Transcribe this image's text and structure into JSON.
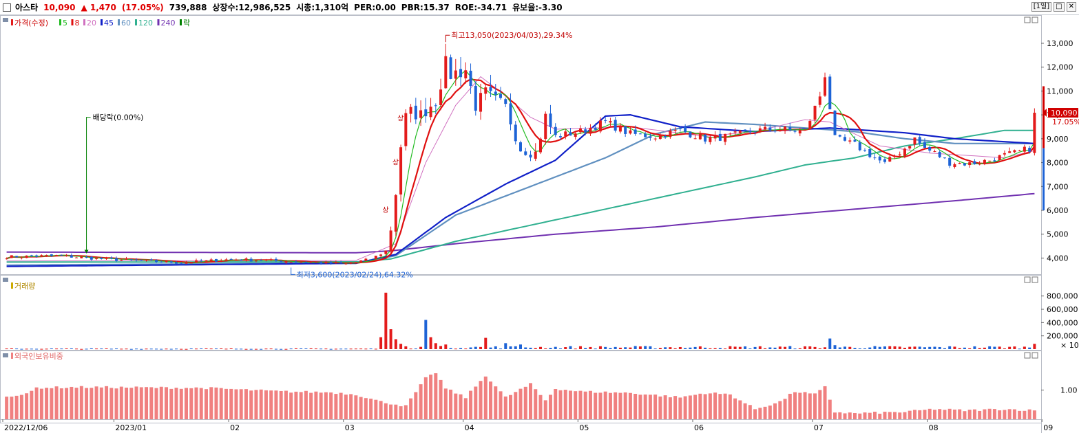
{
  "header": {
    "name": "아스타",
    "price": "10,090",
    "change": "▲ 1,470",
    "change_pct": "(17.05%)",
    "volume": "739,888",
    "listed": "상장수:12,986,525",
    "mcap": "시총:1,310억",
    "per": "PER:0.00",
    "pbr": "PBR:15.37",
    "roe": "ROE:-34.71",
    "reserve": "유보율:-3.30",
    "period": "[1일]"
  },
  "colors": {
    "up": "#e31b1b",
    "down": "#1d63d6",
    "ma5": "#22bb22",
    "ma8": "#e01010",
    "ma20": "#d070c0",
    "ma45": "#1020c8",
    "ma60": "#6090c0",
    "ma120": "#30b090",
    "ma240": "#7030b0",
    "foreign": "#f08080"
  },
  "chart_data": [
    {
      "type": "candlestick",
      "legend": [
        "가격(수정)",
        "5",
        "8",
        "20",
        "45",
        "60",
        "120",
        "240",
        "락"
      ],
      "y_ticks": [
        "13,000",
        "12,000",
        "11,000",
        "10,000",
        "9,000",
        "8,000",
        "7,000",
        "6,000",
        "5,000",
        "4,000"
      ],
      "ylim": [
        3350,
        13950
      ],
      "x_ticks": [
        "2022/12/06",
        "2023/01",
        "02",
        "03",
        "04",
        "05",
        "06",
        "07",
        "08",
        "09"
      ],
      "last_price_label": "10,090",
      "last_pct_label": "17.05%",
      "annotations": {
        "high": "최고13,050(2023/04/03),29.34%",
        "low": "최저3,600(2023/02/24),64.32%",
        "dividend": "배당락(0.00%)",
        "limit_up": "상"
      },
      "price_anchors": [
        [
          0,
          4050
        ],
        [
          10,
          4100
        ],
        [
          20,
          3950
        ],
        [
          35,
          3800
        ],
        [
          45,
          3950
        ],
        [
          58,
          3850
        ],
        [
          68,
          3750
        ],
        [
          73,
          3950
        ],
        [
          76,
          4300
        ],
        [
          77,
          5200
        ],
        [
          78,
          6700
        ],
        [
          79,
          8700
        ],
        [
          80,
          9900
        ],
        [
          81,
          10100
        ],
        [
          83,
          10000
        ],
        [
          86,
          10600
        ],
        [
          88,
          12100
        ],
        [
          89,
          11700
        ],
        [
          92,
          11900
        ],
        [
          94,
          10400
        ],
        [
          96,
          10900
        ],
        [
          100,
          10300
        ],
        [
          103,
          8600
        ],
        [
          106,
          8400
        ],
        [
          108,
          9900
        ],
        [
          110,
          9100
        ],
        [
          115,
          9300
        ],
        [
          120,
          9700
        ],
        [
          125,
          9200
        ],
        [
          130,
          9100
        ],
        [
          135,
          9350
        ],
        [
          140,
          9000
        ],
        [
          145,
          9100
        ],
        [
          150,
          9350
        ],
        [
          155,
          9400
        ],
        [
          160,
          9300
        ],
        [
          163,
          10800
        ],
        [
          164,
          11700
        ],
        [
          165,
          10300
        ],
        [
          166,
          9000
        ],
        [
          170,
          8750
        ],
        [
          174,
          8200
        ],
        [
          176,
          7950
        ],
        [
          180,
          8600
        ],
        [
          182,
          9000
        ],
        [
          184,
          8600
        ],
        [
          186,
          8400
        ],
        [
          189,
          8000
        ],
        [
          193,
          7950
        ],
        [
          197,
          8100
        ],
        [
          200,
          8300
        ],
        [
          203,
          8450
        ],
        [
          205,
          8600
        ],
        [
          206,
          10090
        ]
      ],
      "ma_lines": {
        "ma240": [
          [
            0,
            4250
          ],
          [
            70,
            4220
          ],
          [
            77,
            4300
          ],
          [
            90,
            4600
          ],
          [
            110,
            5000
          ],
          [
            130,
            5300
          ],
          [
            150,
            5700
          ],
          [
            170,
            6050
          ],
          [
            190,
            6400
          ],
          [
            206,
            6700
          ]
        ],
        "ma120": [
          [
            0,
            3830
          ],
          [
            70,
            3840
          ],
          [
            77,
            3960
          ],
          [
            90,
            4700
          ],
          [
            110,
            5600
          ],
          [
            130,
            6500
          ],
          [
            150,
            7400
          ],
          [
            160,
            7900
          ],
          [
            170,
            8200
          ],
          [
            180,
            8700
          ],
          [
            190,
            9000
          ],
          [
            200,
            9350
          ],
          [
            206,
            9350
          ]
        ],
        "ma60": [
          [
            0,
            3700
          ],
          [
            70,
            3800
          ],
          [
            78,
            4100
          ],
          [
            90,
            5800
          ],
          [
            105,
            7000
          ],
          [
            120,
            8200
          ],
          [
            130,
            9200
          ],
          [
            140,
            9700
          ],
          [
            150,
            9600
          ],
          [
            160,
            9450
          ],
          [
            170,
            9300
          ],
          [
            180,
            9000
          ],
          [
            190,
            8800
          ],
          [
            206,
            8800
          ]
        ],
        "ma45": [
          [
            0,
            3650
          ],
          [
            70,
            3780
          ],
          [
            78,
            4150
          ],
          [
            88,
            5700
          ],
          [
            100,
            7100
          ],
          [
            110,
            8100
          ],
          [
            120,
            9950
          ],
          [
            125,
            10000
          ],
          [
            135,
            9500
          ],
          [
            150,
            9300
          ],
          [
            165,
            9450
          ],
          [
            180,
            9250
          ],
          [
            190,
            9000
          ],
          [
            206,
            8800
          ]
        ],
        "ma20": [
          [
            0,
            3880
          ],
          [
            70,
            3900
          ],
          [
            78,
            4600
          ],
          [
            84,
            8000
          ],
          [
            90,
            10400
          ],
          [
            95,
            11600
          ],
          [
            100,
            10800
          ],
          [
            105,
            9900
          ],
          [
            110,
            9400
          ],
          [
            125,
            9500
          ],
          [
            140,
            9100
          ],
          [
            150,
            9300
          ],
          [
            160,
            9800
          ],
          [
            165,
            9700
          ],
          [
            175,
            8700
          ],
          [
            185,
            8400
          ],
          [
            200,
            8200
          ],
          [
            206,
            8500
          ]
        ]
      },
      "volume_spikes": [
        [
          75,
          180000
        ],
        [
          76,
          850000
        ],
        [
          77,
          300000
        ],
        [
          78,
          150000
        ],
        [
          79,
          80000
        ],
        [
          84,
          440000
        ],
        [
          85,
          180000
        ],
        [
          86,
          90000
        ],
        [
          88,
          70000
        ],
        [
          96,
          170000
        ],
        [
          100,
          90000
        ],
        [
          103,
          70000
        ],
        [
          165,
          160000
        ],
        [
          166,
          60000
        ],
        [
          206,
          80000
        ]
      ]
    },
    {
      "type": "bar",
      "title": "거래량",
      "y_ticks": [
        "800,000",
        "600,000",
        "400,000",
        "200,000"
      ],
      "unit_note": "× 10",
      "ylim": [
        0,
        900000
      ]
    },
    {
      "type": "bar",
      "title": "외국인보유비중",
      "y_ticks": [
        "1.00"
      ],
      "foreign_anchors": [
        [
          0,
          0.8
        ],
        [
          4,
          0.85
        ],
        [
          6,
          1.08
        ],
        [
          15,
          1.1
        ],
        [
          40,
          1.07
        ],
        [
          55,
          0.95
        ],
        [
          65,
          0.92
        ],
        [
          70,
          0.85
        ],
        [
          75,
          0.6
        ],
        [
          80,
          0.45
        ],
        [
          84,
          1.4
        ],
        [
          86,
          1.6
        ],
        [
          88,
          1.05
        ],
        [
          92,
          0.75
        ],
        [
          96,
          1.5
        ],
        [
          100,
          0.75
        ],
        [
          105,
          1.2
        ],
        [
          108,
          0.65
        ],
        [
          110,
          1.05
        ],
        [
          115,
          0.95
        ],
        [
          125,
          0.9
        ],
        [
          135,
          0.75
        ],
        [
          140,
          0.9
        ],
        [
          145,
          0.85
        ],
        [
          150,
          0.35
        ],
        [
          155,
          0.6
        ],
        [
          158,
          0.95
        ],
        [
          162,
          0.85
        ],
        [
          164,
          1.1
        ],
        [
          166,
          0.25
        ],
        [
          170,
          0.2
        ],
        [
          180,
          0.25
        ],
        [
          186,
          0.35
        ],
        [
          192,
          0.3
        ],
        [
          200,
          0.35
        ],
        [
          206,
          0.3
        ]
      ]
    }
  ]
}
